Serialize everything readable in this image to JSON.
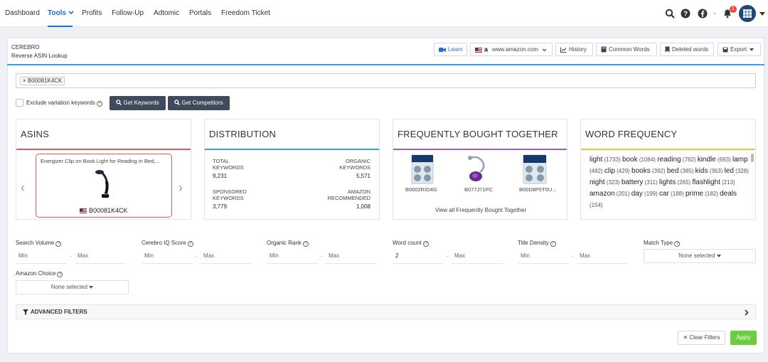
{
  "nav": {
    "items": [
      "Dashboard",
      "Tools",
      "Profits",
      "Follow-Up",
      "Adtomic",
      "Portals",
      "Freedom Ticket"
    ],
    "notification_count": "1"
  },
  "page": {
    "title": "CEREBRO",
    "subtitle": "Reverse ASIN Lookup"
  },
  "toolbar": {
    "learn": "Learn",
    "marketplace": "www.amazon.com",
    "history": "History",
    "common_words": "Common Words",
    "deleted_words": "Deleted words",
    "export": "Export"
  },
  "search": {
    "asin_tag": "B00081K4CK"
  },
  "options": {
    "exclude_label": "Exclude variation keywords",
    "get_keywords": "Get Keywords",
    "get_competitors": "Get Competitors"
  },
  "asins": {
    "title": "ASINS",
    "product_title": "Energizer Clip on Book Light for Reading in Bed,...",
    "product_asin": "B00081K4CK"
  },
  "distribution": {
    "title": "DISTRIBUTION",
    "total_label": "TOTAL\nKEYWORDS",
    "total_value": "9,231",
    "organic_label": "ORGANIC\nKEYWORDS",
    "organic_value": "5,571",
    "sponsored_label": "SPONSORED\nKEYWORDS",
    "sponsored_value": "3,779",
    "recommended_label": "AMAZON\nRECOMMENDED",
    "recommended_value": "1,008"
  },
  "fbt": {
    "title": "FREQUENTLY BOUGHT TOGETHER",
    "items": [
      "B0002RID4G",
      "B077J71PC",
      "B00D8P5T0U..."
    ],
    "view_all": "View all Frequently Bought Together"
  },
  "word_frequency": {
    "title": "WORD FREQUENCY",
    "words": [
      {
        "w": "light",
        "c": "(1733)"
      },
      {
        "w": "book",
        "c": "(1084)"
      },
      {
        "w": "reading",
        "c": "(782)"
      },
      {
        "w": "kindle",
        "c": "(693)"
      },
      {
        "w": "lamp",
        "c": "(482)"
      },
      {
        "w": "clip",
        "c": "(429)"
      },
      {
        "w": "books",
        "c": "(392)"
      },
      {
        "w": "bed",
        "c": "(385)"
      },
      {
        "w": "kids",
        "c": "(363)"
      },
      {
        "w": "led",
        "c": "(328)"
      },
      {
        "w": "night",
        "c": "(323)"
      },
      {
        "w": "battery",
        "c": "(311)"
      },
      {
        "w": "lights",
        "c": "(265)"
      },
      {
        "w": "flashlight",
        "c": "(213)"
      },
      {
        "w": "amazon",
        "c": "(201)"
      },
      {
        "w": "day",
        "c": "(199)"
      },
      {
        "w": "car",
        "c": "(188)"
      },
      {
        "w": "prime",
        "c": "(182)"
      },
      {
        "w": "deals",
        "c": "(154)"
      }
    ]
  },
  "filters": {
    "search_volume": "Search Volume",
    "cerebro_iq": "Cerebro IQ Score",
    "organic_rank": "Organic Rank",
    "word_count": "Word count",
    "title_density": "Title Density",
    "match_type": "Match Type",
    "amazon_choice": "Amazon Choice",
    "min_placeholder": "Min",
    "max_placeholder": "Max",
    "word_count_min_value": "2",
    "dash": "-",
    "none_selected": "None selected",
    "advanced": "ADVANCED FILTERS",
    "clear": "Clear Filters",
    "apply": "Apply"
  },
  "colors": {
    "accent": "#1c6fd8",
    "asins_line": "#e05a5a",
    "distribution_line": "#3a9ee6",
    "fbt_line": "#a05bd0",
    "wordfreq_line": "#f2c432",
    "apply": "#6ccd3e"
  }
}
